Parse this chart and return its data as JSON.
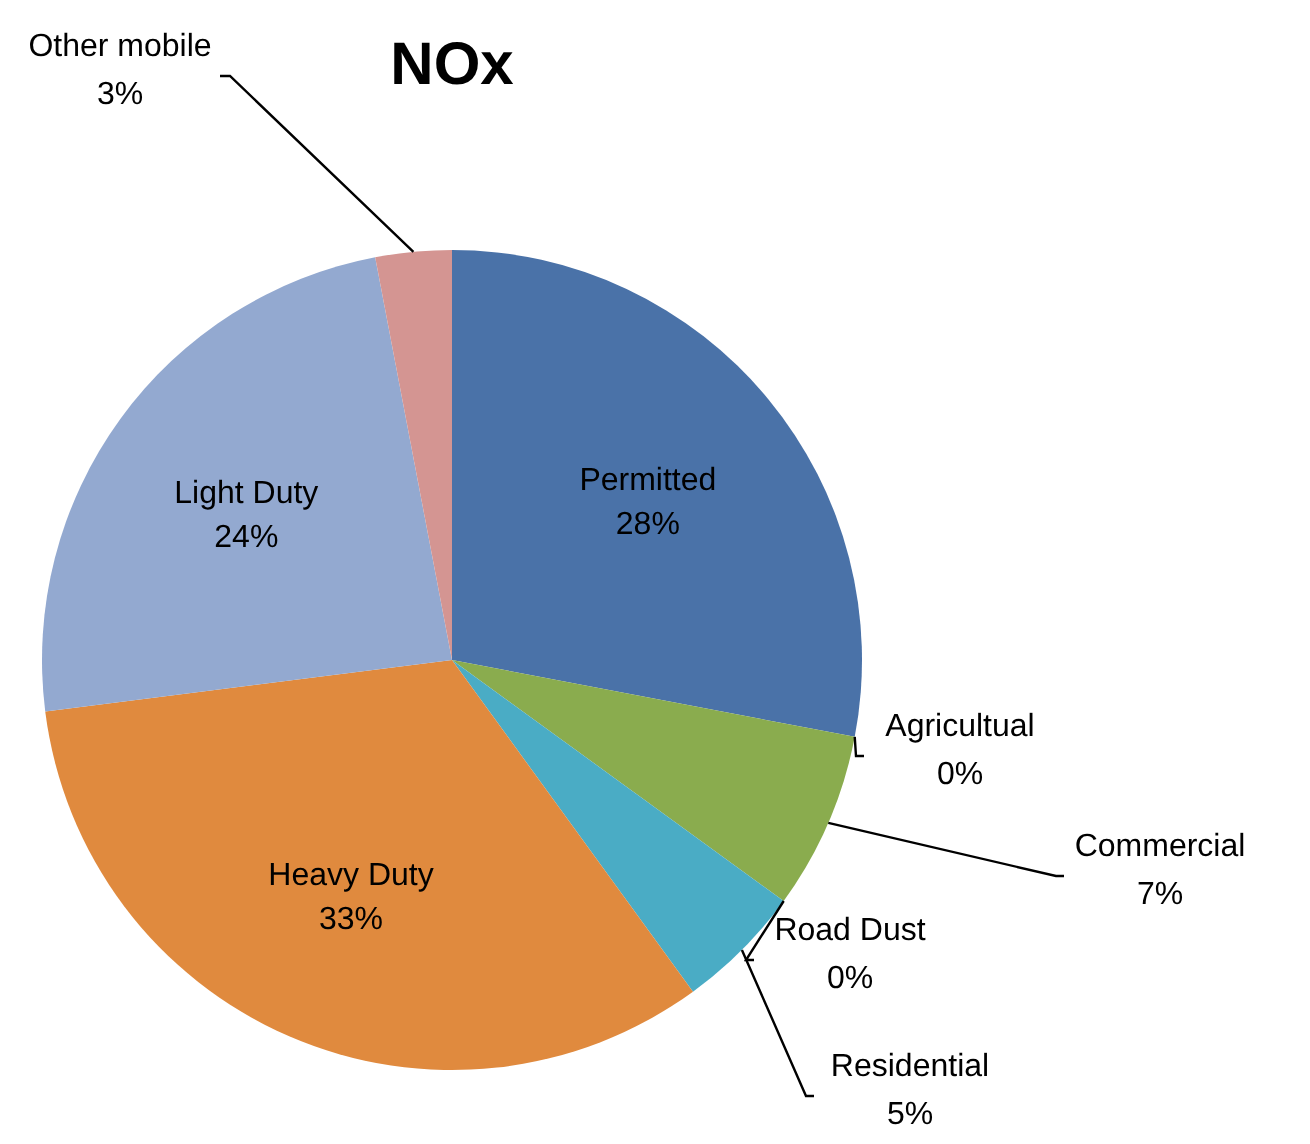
{
  "chart_data": {
    "type": "pie",
    "title": "NOx",
    "categories": [
      "Permitted",
      "Agricultual",
      "Commercial",
      "Road Dust",
      "Residential",
      "Heavy Duty",
      "Light Duty",
      "Other mobile"
    ],
    "values": [
      28,
      0,
      7,
      0,
      5,
      33,
      24,
      3
    ],
    "value_labels": [
      "28%",
      "0%",
      "7%",
      "0%",
      "5%",
      "33%",
      "24%",
      "3%"
    ],
    "colors": [
      "#4a72a8",
      "#be4b48",
      "#8aac4e",
      "#7d5fa0",
      "#4aacc5",
      "#e08a3e",
      "#93a9d0",
      "#d49592"
    ]
  }
}
